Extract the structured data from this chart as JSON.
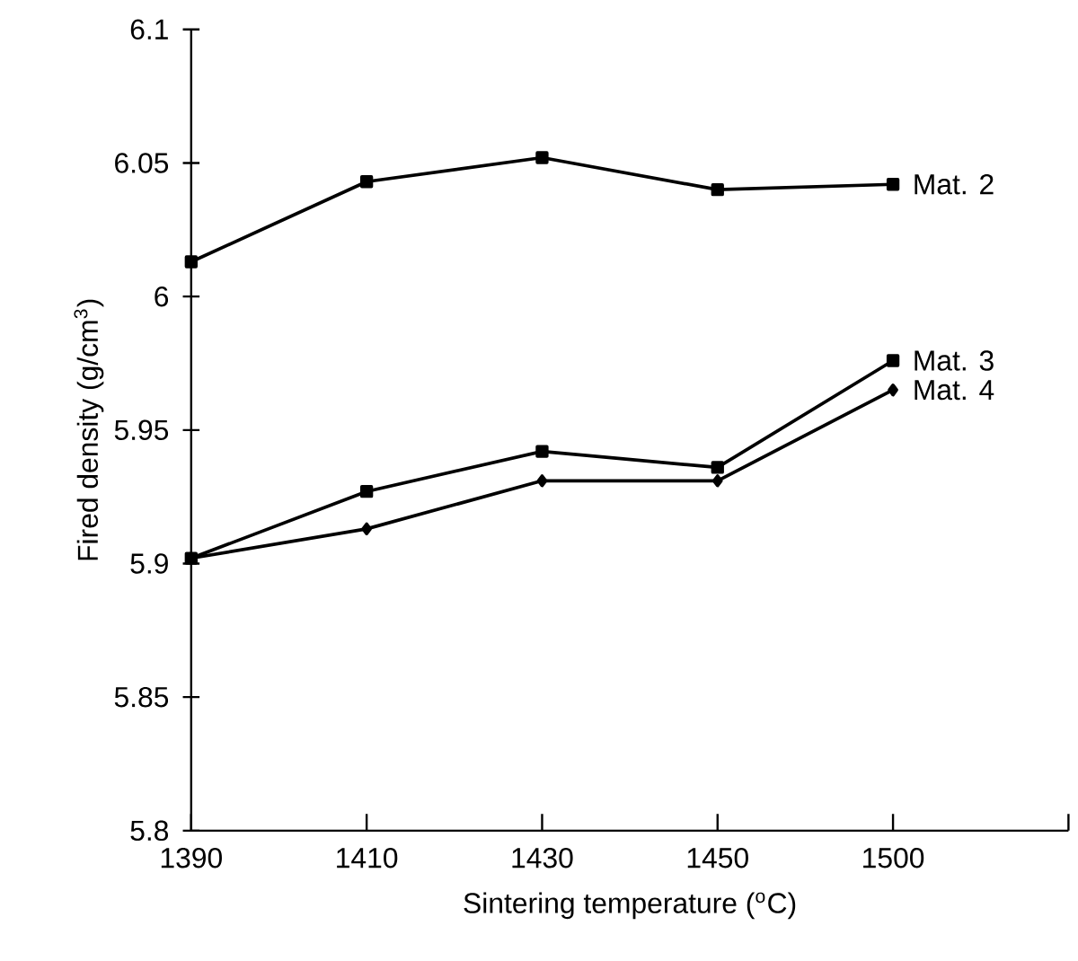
{
  "chart_data": {
    "type": "line",
    "xlabel": "Sintering temperature ($^{o}$C)",
    "ylabel": "Fired density (g/cm$^{3}$)",
    "categories": [
      "1390",
      "1410",
      "1430",
      "1450",
      "1500"
    ],
    "ylim": [
      5.8,
      6.1
    ],
    "yticks": [
      5.8,
      5.85,
      5.9,
      5.95,
      6,
      6.05,
      6.1
    ],
    "series": [
      {
        "name": "Mat. 2",
        "color": "#000000",
        "marker": "square",
        "values": [
          6.013,
          6.043,
          6.052,
          6.04,
          6.042
        ]
      },
      {
        "name": "Mat. 3",
        "color": "#000000",
        "marker": "square",
        "values": [
          5.902,
          5.927,
          5.942,
          5.936,
          5.976
        ]
      },
      {
        "name": "Mat. 4",
        "color": "#000000",
        "marker": "diamond",
        "values": [
          5.902,
          5.913,
          5.931,
          5.931,
          5.965
        ]
      }
    ],
    "legend": false,
    "grid": false,
    "line_style": "solid"
  }
}
